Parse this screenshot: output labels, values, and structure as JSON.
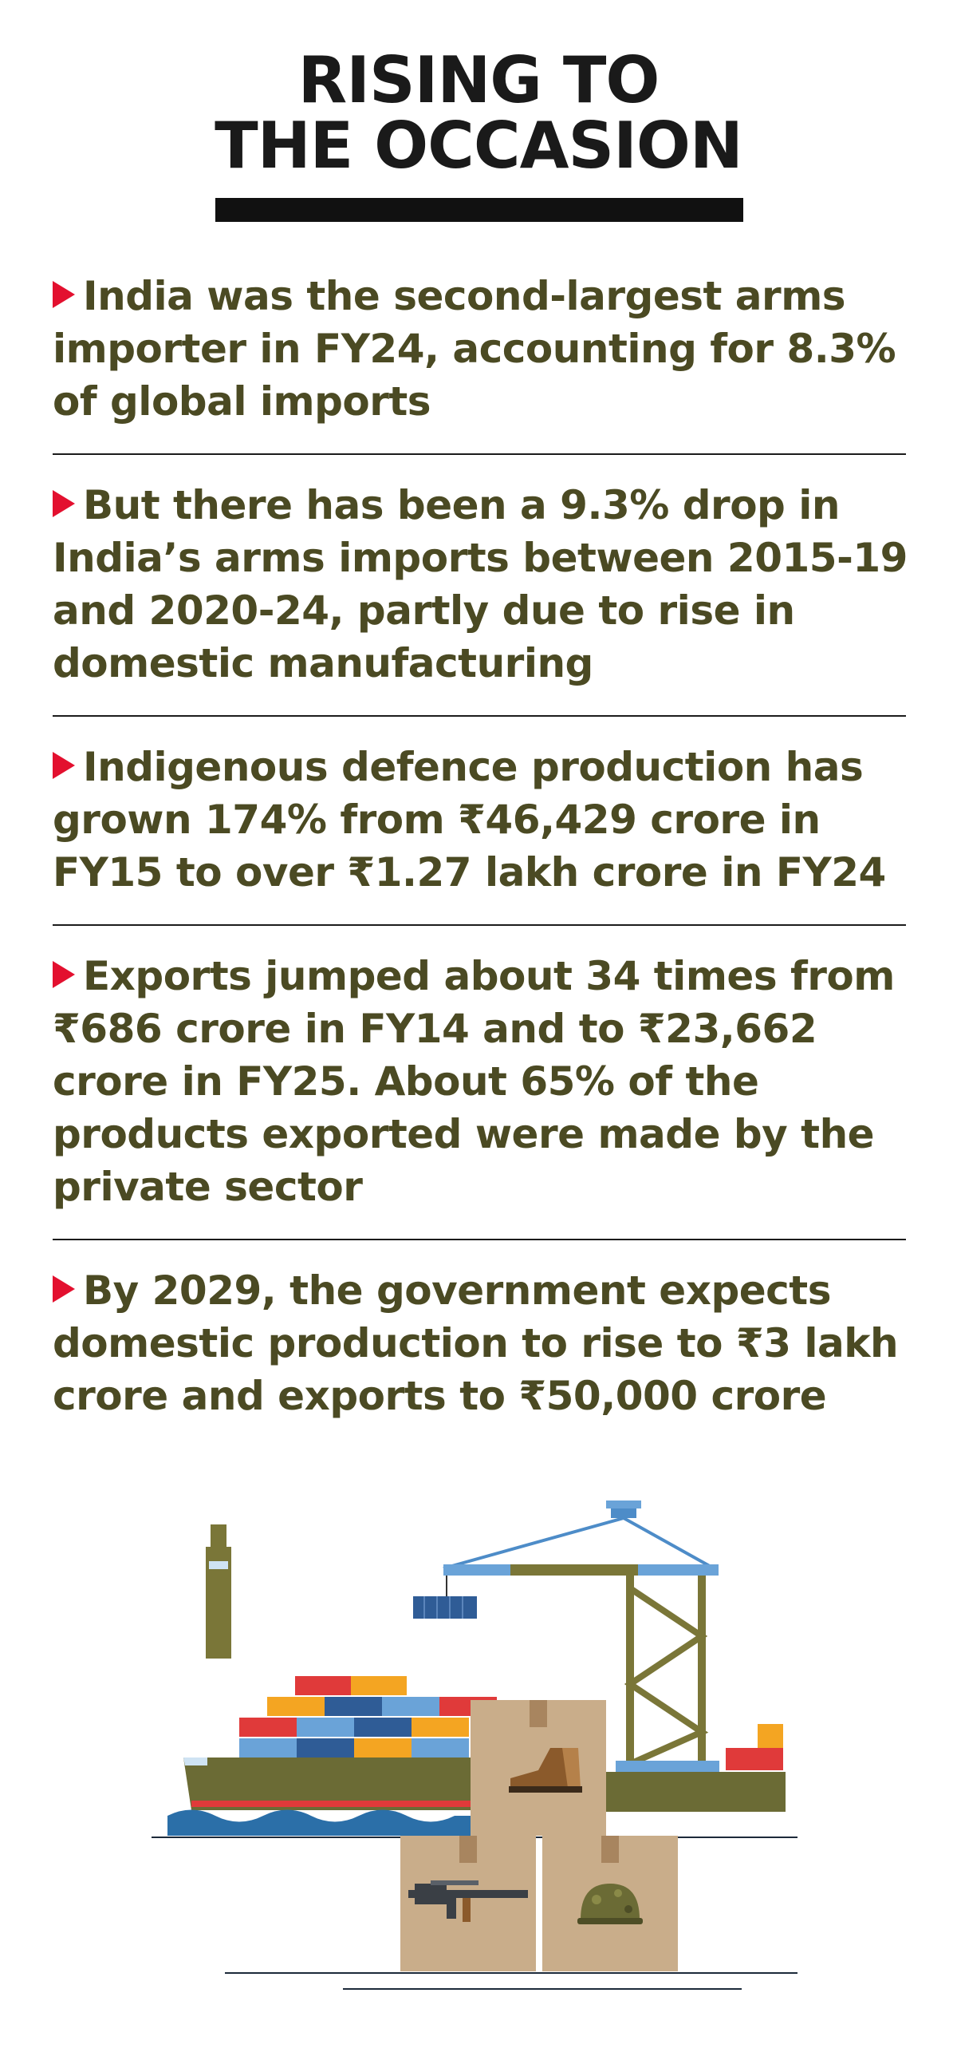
{
  "title": {
    "line1": "RISING TO",
    "line2": "THE OCCASION"
  },
  "facts": [
    {
      "text": "India was the second-largest arms importer in FY24, accounting for 8.3% of global imports"
    },
    {
      "text": "But there has been a 9.3% drop in India’s arms imports between 2015-19 and 2020-24, partly due to rise in domestic manufacturing"
    },
    {
      "text": "Indigenous defence production has grown 174% from ₹46,429 crore in FY15 to over ₹1.27 lakh crore in FY24"
    },
    {
      "text": "Exports jumped about 34 times from ₹686 crore in FY14 and to ₹23,662 crore in FY25. About 65% of the products exported were made by the private sector"
    },
    {
      "text": "By 2029, the government expects domestic production to rise to ₹3 lakh crore and exports to ₹50,000 crore"
    }
  ],
  "colors": {
    "text": "#4b4a23",
    "bullet": "#e3102f",
    "title": "#1a1a1a",
    "ship_hull": "#6b6b35",
    "crane": "#7a7638",
    "water": "#2b6fa8",
    "box": "#c9ad8a"
  },
  "illustration": {
    "icons": [
      "cargo-ship-icon",
      "port-crane-icon",
      "shipping-container-icon",
      "boot-icon",
      "rifle-icon",
      "helmet-icon",
      "box-icon"
    ]
  }
}
